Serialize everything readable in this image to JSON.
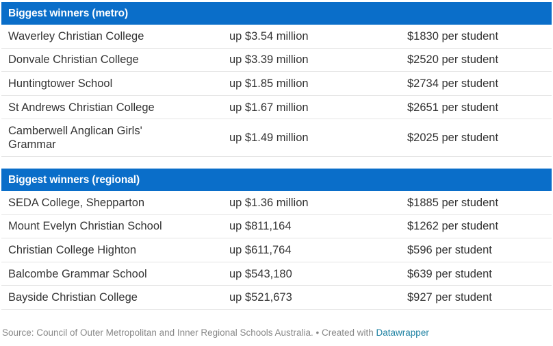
{
  "footer": {
    "source_text": "Source: Council of Outer Metropolitan and Inner Regional Schools Australia. • Created with ",
    "link_text": "Datawrapper"
  },
  "sections": [
    {
      "title": "Biggest winners (metro)",
      "rows": [
        {
          "name": "Waverley Christian College",
          "change": "up $3.54 million",
          "per_student": "$1830 per student"
        },
        {
          "name": "Donvale Christian College",
          "change": "up $3.39 million",
          "per_student": "$2520 per student"
        },
        {
          "name": "Huntingtower School",
          "change": "up $1.85 million",
          "per_student": "$2734 per student"
        },
        {
          "name": "St Andrews Christian College",
          "change": "up $1.67 million",
          "per_student": "$2651 per student"
        },
        {
          "name": "Camberwell Anglican Girls' Grammar",
          "change": "up $1.49 million",
          "per_student": "$2025 per student"
        }
      ]
    },
    {
      "title": "Biggest winners (regional)",
      "rows": [
        {
          "name": "SEDA College, Shepparton",
          "change": "up $1.36 million",
          "per_student": "$1885 per student"
        },
        {
          "name": "Mount Evelyn Christian School",
          "change": "up $811,164",
          "per_student": "$1262 per student"
        },
        {
          "name": "Christian College Highton",
          "change": "up $611,764",
          "per_student": "$596 per student"
        },
        {
          "name": "Balcombe Grammar School",
          "change": "up $543,180",
          "per_student": "$639 per student"
        },
        {
          "name": "Bayside Christian College",
          "change": "up $521,673",
          "per_student": "$927 per student"
        }
      ]
    }
  ]
}
